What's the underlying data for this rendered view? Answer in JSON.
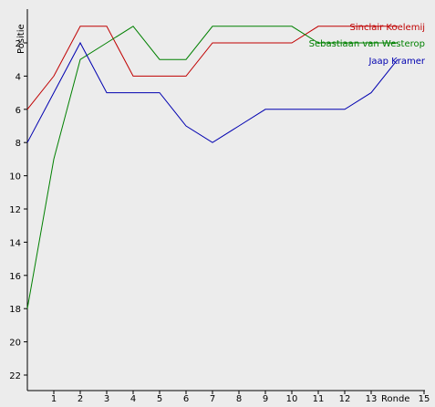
{
  "chart_data": {
    "type": "line",
    "title": "",
    "xlabel": "Ronde",
    "ylabel": "Positie",
    "xlim": [
      0,
      15
    ],
    "ylim": [
      23,
      1
    ],
    "y_inverted": true,
    "x_ticks": [
      1,
      2,
      3,
      4,
      5,
      6,
      7,
      8,
      9,
      10,
      11,
      12,
      13,
      15
    ],
    "y_ticks": [
      2,
      4,
      6,
      8,
      10,
      12,
      14,
      16,
      18,
      20,
      22
    ],
    "grid": false,
    "legend_placement": "top-right",
    "x": [
      0,
      1,
      2,
      3,
      4,
      5,
      6,
      7,
      8,
      9,
      10,
      11,
      12,
      13,
      14
    ],
    "series": [
      {
        "name": "Sinclair Koelemij",
        "color": "#c00000",
        "values": [
          6,
          4,
          1,
          1,
          4,
          4,
          4,
          2,
          2,
          2,
          2,
          1,
          1,
          1,
          1
        ]
      },
      {
        "name": "Sebastiaan van Westerop",
        "color": "#008000",
        "values": [
          18,
          9,
          3,
          2,
          1,
          3,
          3,
          1,
          1,
          1,
          1,
          2,
          2,
          2,
          2
        ]
      },
      {
        "name": "Jaap Kramer",
        "color": "#0000b0",
        "values": [
          8,
          5,
          2,
          5,
          5,
          5,
          7,
          8,
          7,
          6,
          6,
          6,
          6,
          5,
          3
        ]
      }
    ]
  }
}
